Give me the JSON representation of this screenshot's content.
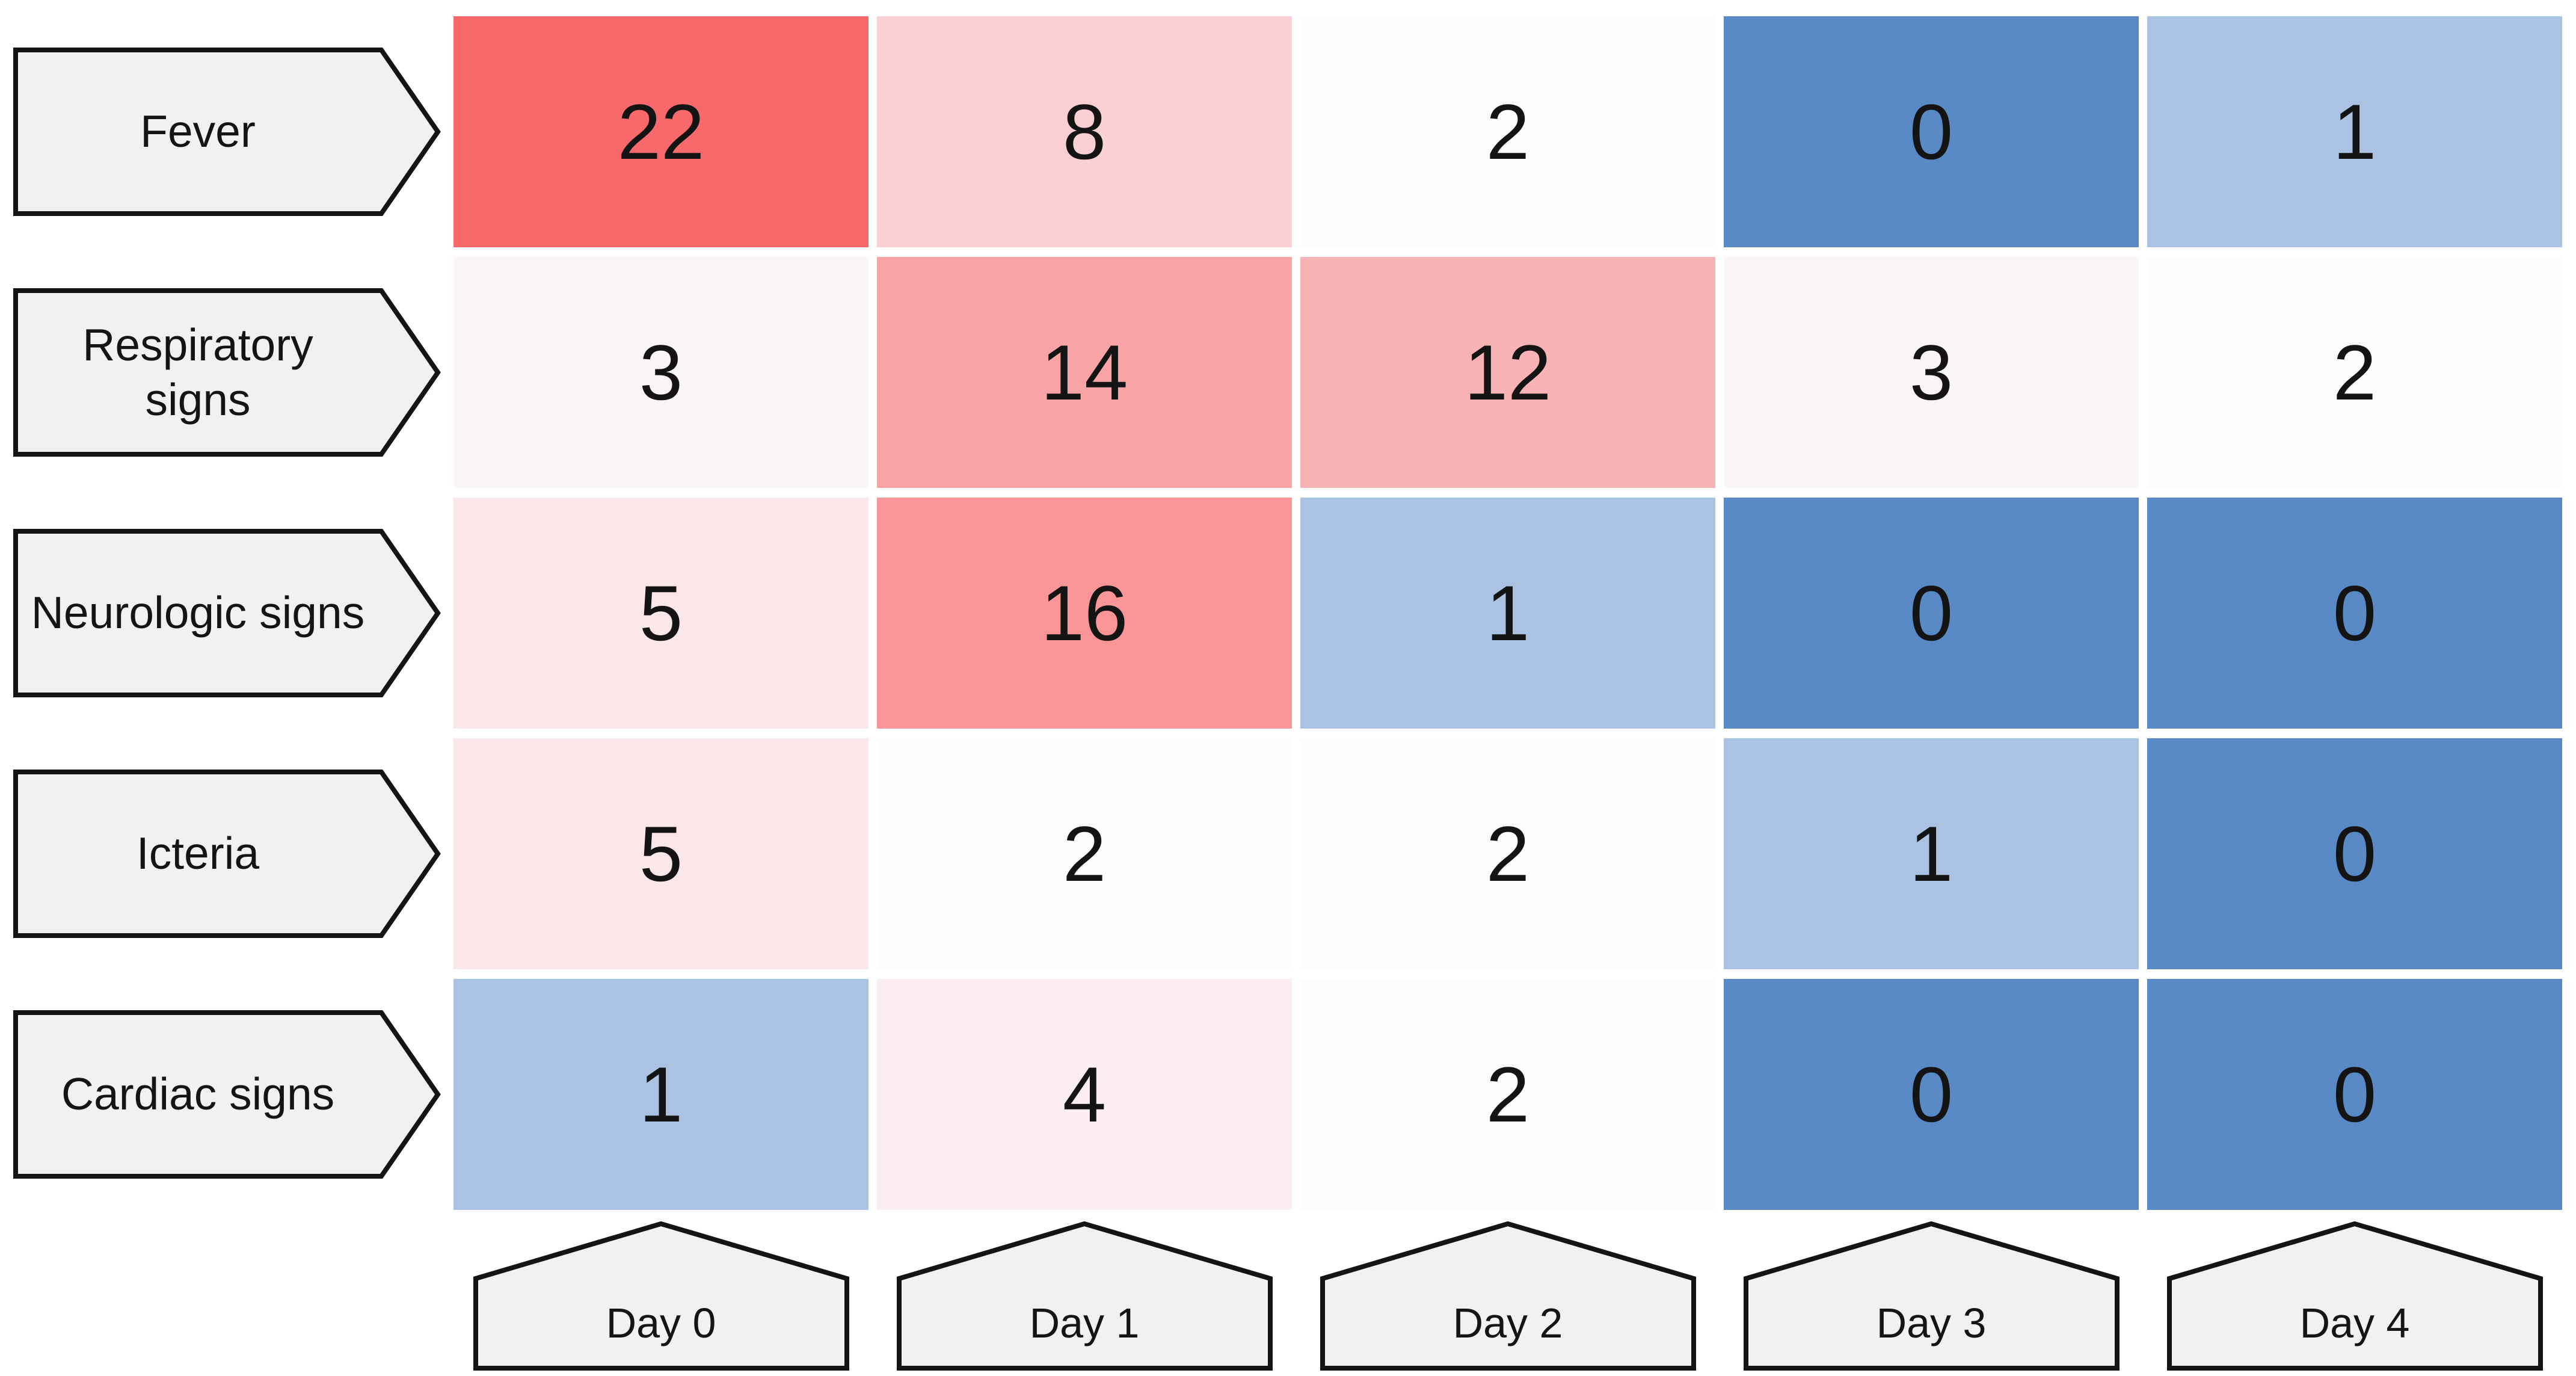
{
  "chart_data": {
    "type": "heatmap",
    "title": "",
    "rows": [
      "Fever",
      "Respiratory signs",
      "Neurologic signs",
      "Icteria",
      "Cardiac signs"
    ],
    "columns": [
      "Day 0",
      "Day 1",
      "Day 2",
      "Day 3",
      "Day 4"
    ],
    "values": [
      [
        22,
        8,
        2,
        0,
        1
      ],
      [
        3,
        14,
        12,
        3,
        2
      ],
      [
        5,
        16,
        1,
        0,
        0
      ],
      [
        5,
        2,
        2,
        1,
        0
      ],
      [
        1,
        4,
        2,
        0,
        0
      ]
    ],
    "color_scale": {
      "type": "3-color-diverging",
      "min_value": 0,
      "min_color": "#5A8AC6",
      "mid_value": 2,
      "mid_color": "#FCFCFF",
      "max_value": 22,
      "max_color": "#F8696B"
    },
    "layout_hints": {
      "row_labels_position": "left",
      "column_labels_position": "bottom",
      "row_label_shape": "right-arrow-pentagon",
      "column_label_shape": "up-house-pentagon",
      "label_fill": "#F1F1F1",
      "label_border": "#141414",
      "value_text_color": "#141414",
      "grid": "off",
      "legend": "none"
    }
  }
}
